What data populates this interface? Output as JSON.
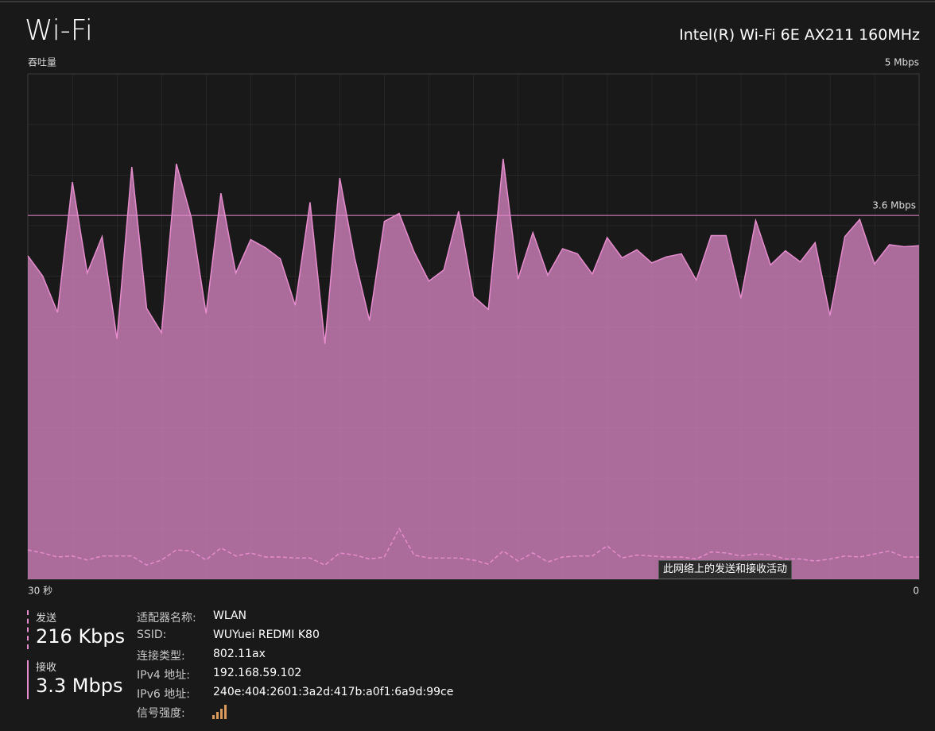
{
  "header": {
    "title": "Wi-Fi",
    "adapter": "Intel(R) Wi-Fi 6E AX211 160MHz"
  },
  "chart_data": {
    "type": "area",
    "y_label": "吞吐量",
    "x": [
      30,
      29.5,
      29,
      28.5,
      28,
      27.5,
      27,
      26.5,
      26,
      25.5,
      25,
      24.5,
      24,
      23.5,
      23,
      22.5,
      22,
      21.5,
      21,
      20.5,
      20,
      19.5,
      19,
      18.5,
      18,
      17.5,
      17,
      16.5,
      16,
      15.5,
      15,
      14.5,
      14,
      13.5,
      13,
      12.5,
      12,
      11.5,
      11,
      10.5,
      10,
      9.5,
      9,
      8.5,
      8,
      7.5,
      7,
      6.5,
      6,
      5.5,
      5,
      4.5,
      4,
      3.5,
      3,
      2.5,
      2,
      1.5,
      1,
      0.5,
      0
    ],
    "series": [
      {
        "name": "接收",
        "color": "#e58ccd",
        "style": "solid",
        "values": [
          3.2,
          3.0,
          2.64,
          3.93,
          3.03,
          3.39,
          2.38,
          4.08,
          2.68,
          2.44,
          4.11,
          3.58,
          2.63,
          3.82,
          3.03,
          3.36,
          3.28,
          3.17,
          2.71,
          3.73,
          2.33,
          3.97,
          3.18,
          2.56,
          3.54,
          3.62,
          3.24,
          2.95,
          3.06,
          3.64,
          2.8,
          2.67,
          4.16,
          2.97,
          3.43,
          3.01,
          3.27,
          3.22,
          3.02,
          3.38,
          3.18,
          3.26,
          3.13,
          3.19,
          3.22,
          2.96,
          3.4,
          3.4,
          2.78,
          3.55,
          3.11,
          3.25,
          3.14,
          3.33,
          2.61,
          3.39,
          3.56,
          3.12,
          3.31,
          3.29,
          3.3
        ]
      },
      {
        "name": "发送",
        "color": "#e58ccd",
        "style": "dashed",
        "values": [
          0.29,
          0.26,
          0.22,
          0.23,
          0.19,
          0.23,
          0.23,
          0.23,
          0.14,
          0.19,
          0.29,
          0.28,
          0.19,
          0.31,
          0.23,
          0.26,
          0.22,
          0.22,
          0.21,
          0.21,
          0.14,
          0.26,
          0.24,
          0.2,
          0.22,
          0.5,
          0.24,
          0.21,
          0.21,
          0.21,
          0.19,
          0.15,
          0.28,
          0.18,
          0.26,
          0.17,
          0.22,
          0.23,
          0.23,
          0.33,
          0.21,
          0.24,
          0.23,
          0.22,
          0.22,
          0.2,
          0.27,
          0.26,
          0.23,
          0.25,
          0.24,
          0.2,
          0.2,
          0.18,
          0.2,
          0.23,
          0.22,
          0.25,
          0.28,
          0.22,
          0.22
        ]
      }
    ],
    "xlim": [
      30,
      0
    ],
    "xticks": [
      {
        "value": 30,
        "label": "30 秒"
      },
      0
    ],
    "ylim": [
      0,
      5
    ],
    "yticks": [
      {
        "value": 5,
        "label": "5 Mbps"
      }
    ],
    "reference_line": {
      "value": 3.6,
      "label": "3.6 Mbps"
    },
    "tooltip": "此网络上的发送和接收活动"
  },
  "stats": {
    "send": "216 Kbps",
    "receive": "3.3 Mbps"
  },
  "details": [
    [
      "适配器名称:",
      "WLAN"
    ],
    [
      "SSID:",
      "WUYuei REDMI K80"
    ],
    [
      "连接类型:",
      "802.11ax"
    ],
    [
      "IPv4 地址:",
      "192.168.59.102"
    ],
    [
      "IPv6 地址:",
      "240e:404:2601:3a2d:417b:a0f1:6a9d:99ce"
    ],
    [
      "信号强度:"
    ]
  ]
}
